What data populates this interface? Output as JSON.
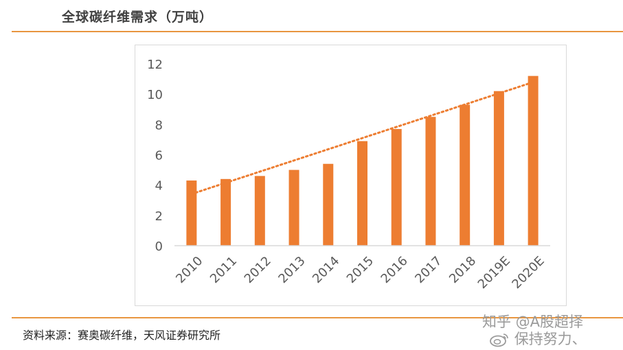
{
  "page": {
    "title": "全球碳纤维需求（万吨）",
    "source": "资料来源：赛奥碳纤维，天风证券研究所"
  },
  "watermark": {
    "line1": "知乎 @A股超择",
    "line2": "保持努力、"
  },
  "colors": {
    "accent": "#e8953f",
    "bar": "#ed7d31",
    "trendline": "#ed7d31",
    "axis_text": "#595959",
    "frame": "#d9d9d9"
  },
  "chart_data": {
    "type": "bar",
    "categories": [
      "2010",
      "2011",
      "2012",
      "2013",
      "2014",
      "2015",
      "2016",
      "2017",
      "2018",
      "2019E",
      "2020E"
    ],
    "values": [
      4.3,
      4.4,
      4.6,
      5.0,
      5.4,
      6.9,
      7.7,
      8.5,
      9.3,
      10.2,
      11.2
    ],
    "ylim": [
      0,
      12
    ],
    "yticks": [
      "0",
      "2",
      "4",
      "6",
      "8",
      "10",
      "12"
    ],
    "grid": false,
    "legend": "none",
    "trendline": {
      "type": "linear",
      "style": "dotted",
      "start": 3.5,
      "end": 10.7
    }
  }
}
